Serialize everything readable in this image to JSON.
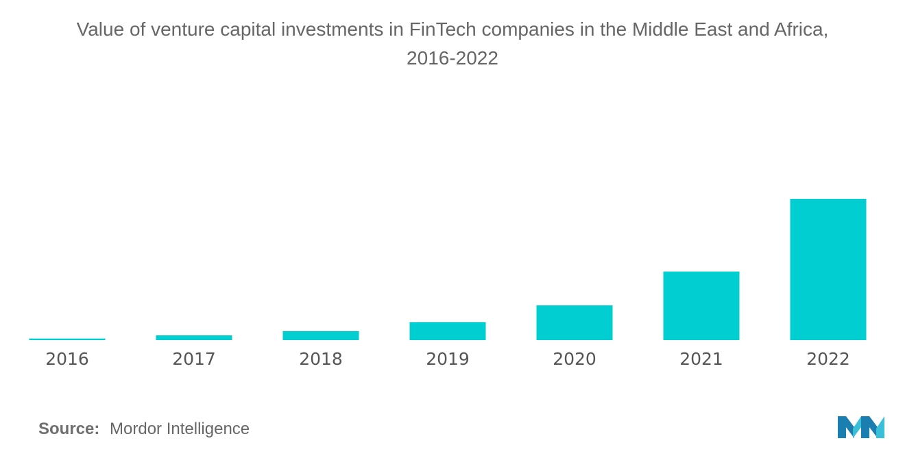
{
  "chart_data": {
    "type": "bar",
    "title": "Value of venture capital investments in FinTech companies in the Middle East and Africa,",
    "subtitle": "2016-2022",
    "categories": [
      "2016",
      "2017",
      "2018",
      "2019",
      "2020",
      "2021",
      "2022"
    ],
    "values": [
      1.5,
      4.5,
      8.5,
      17,
      33,
      65,
      134
    ],
    "xlabel": "",
    "ylabel": "",
    "ylim": [
      0,
      160
    ],
    "grid": false,
    "legend": "none",
    "bar_color": "#00CED1",
    "axis_color": "#d0d0d0"
  },
  "footer": {
    "source_label": "Source:",
    "source_text": "Mordor Intelligence"
  },
  "logo": {
    "icon": "mordor-intelligence-logo-icon",
    "colors": [
      "#1a7fb0",
      "#3bbfd8"
    ]
  }
}
